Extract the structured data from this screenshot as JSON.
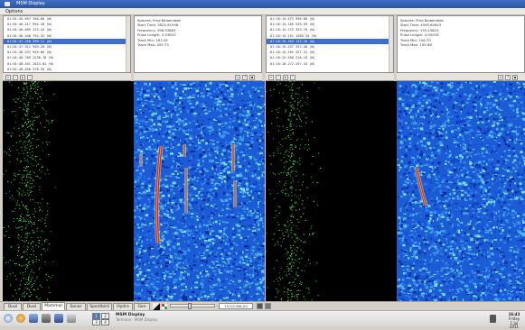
{
  "window": {
    "title": "MSM Display"
  },
  "menu": {
    "options": "Options"
  },
  "panes": [
    {
      "list": [
        "01:01:45.697  700.00  (W)",
        "01:01:46.417  994.38  (W)",
        "01:01:46.899  223.43  (W)",
        "01:01:46.440  792.32  (W)",
        "01:01:47.250  399.11  (W)",
        "01:01:47.911  949.28  (W)",
        "01:01:48.537  949.80  (W)",
        "01:01:48.789  2238.16  (W)",
        "01:01:48.451  2024.84  (W)",
        "01:01:48.658  378.39  (W)"
      ],
      "selected_index": 4,
      "info": {
        "species": "Species: Pmd Balaenidae",
        "start": "Start Time: 3825.91098",
        "freq": "Frequency: 398.33883",
        "pulse": "Pulse Length: 3.93810",
        "tmin": "Track Min: 163.59",
        "tmax": "Track Max: 455.75"
      }
    },
    {
      "list": [
        "01:16:14.473  956.80  (W)",
        "01:16:15.165  249.59  (W)",
        "01:16:15.275  355.78  (W)",
        "01:16:15.151  1583.34  (W)",
        "01:16:15.163  133.16  (W)",
        "01:16:15.437  257.40  (W)",
        "01:16:15.502  437.31  (W)",
        "01:16:15.558  218.18  (W)",
        "01:16:16.272  257.43  (W)"
      ],
      "selected_index": 4,
      "info": {
        "species": "Species: Pmd Balaenidae",
        "start": "Start Time: 4595.60643",
        "freq": "Frequency: 135.43823",
        "pulse": "Pulse Length: 4.00018",
        "tmin": "Track Min: 106.70",
        "tmax": "Track Max: 155.98"
      }
    }
  ],
  "tabs": [
    "Dual",
    "Dual",
    "Mammal",
    "Sonar",
    "Spectbird",
    "Hydra",
    "Gen"
  ],
  "active_tab": 2,
  "time_field": "15:53:496.00",
  "taskbar": {
    "workspaces": [
      "1",
      "2",
      "3",
      "4"
    ],
    "task_title": "MSM Display",
    "task_sub": "Terminal - MSM Display",
    "clock_time": "16:43",
    "clock_day": "Friday",
    "clock_date": "1 Jul 2011"
  },
  "colors": {
    "gram_bg": "#1b5bd6",
    "red": "#d8241e",
    "green": "#3ec63c"
  }
}
